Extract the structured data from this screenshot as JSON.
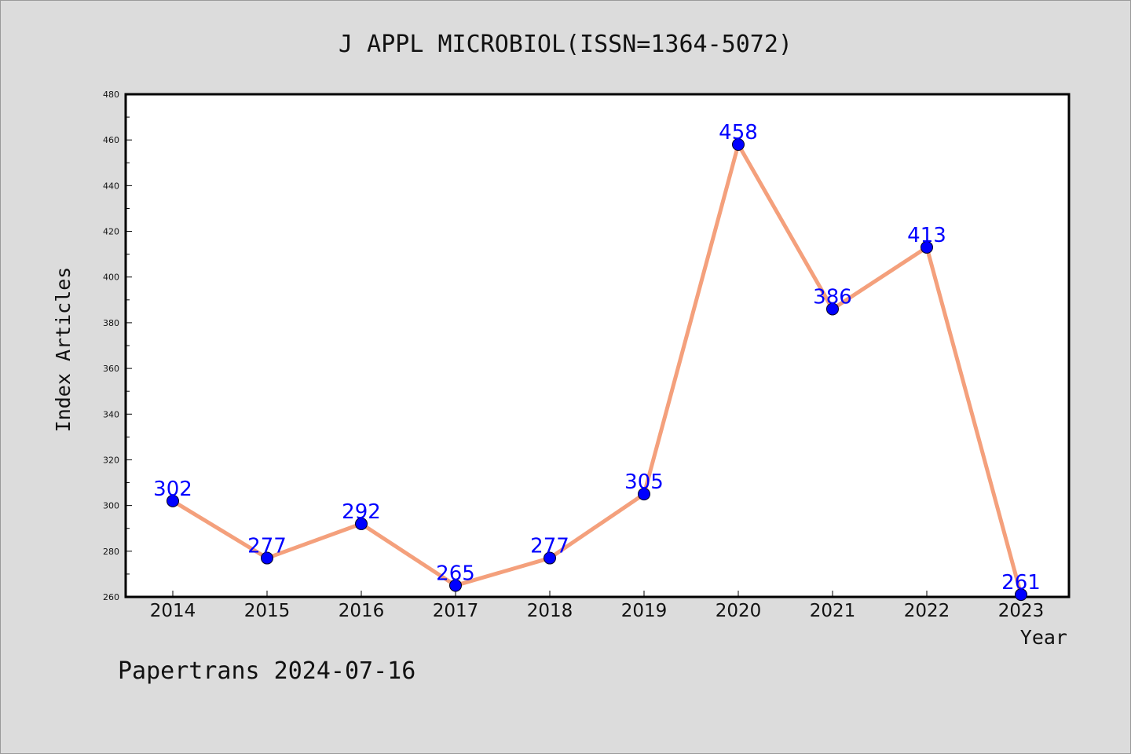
{
  "chart_data": {
    "type": "line",
    "title": "J APPL MICROBIOL(ISSN=1364-5072)",
    "xlabel": "Year",
    "ylabel": "Index Articles",
    "categories": [
      "2014",
      "2015",
      "2016",
      "2017",
      "2018",
      "2019",
      "2020",
      "2021",
      "2022",
      "2023"
    ],
    "series": [
      {
        "values": [
          302,
          277,
          292,
          265,
          277,
          305,
          458,
          386,
          413,
          261
        ],
        "line_color": "#f4a07c",
        "marker_color": "#0000ff"
      }
    ],
    "ylim": [
      260,
      480
    ],
    "yticks": [
      260,
      280,
      300,
      320,
      340,
      360,
      380,
      400,
      420,
      440,
      460,
      480
    ],
    "data_labels": true,
    "grid": false
  },
  "footer": {
    "text": "Papertrans 2024-07-16"
  },
  "colors": {
    "background": "#dcdcdc",
    "plot_background": "#ffffff",
    "line": "#f4a07c",
    "marker": "#0000ff",
    "data_label": "#0000ff"
  }
}
